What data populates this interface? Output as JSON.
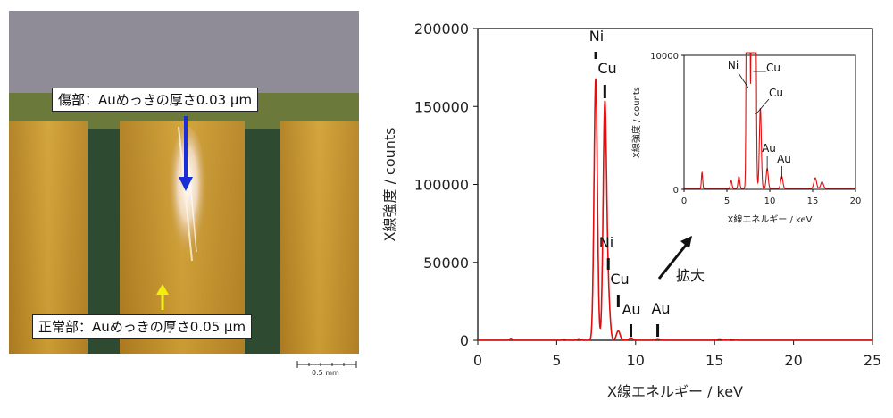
{
  "photo": {
    "damaged_label": "傷部：Auめっきの厚さ0.03 µm",
    "normal_label": "正常部：Auめっきの厚さ0.05 µm",
    "scale_label": "0.5 mm"
  },
  "chart_data": [
    {
      "type": "line",
      "xlabel": "X線エネルギー / keV",
      "ylabel": "X線強度 / counts",
      "xlim": [
        0,
        25
      ],
      "ylim": [
        0,
        200000
      ],
      "xticks": [
        "0",
        "5",
        "10",
        "15",
        "20",
        "25"
      ],
      "yticks": [
        "0",
        "50000",
        "100000",
        "150000",
        "200000"
      ],
      "grid": false,
      "color": "#e01010",
      "peaks": [
        {
          "x": 2.1,
          "y": 1200
        },
        {
          "x": 5.5,
          "y": 600
        },
        {
          "x": 6.4,
          "y": 900
        },
        {
          "x": 7.47,
          "y": 168000
        },
        {
          "x": 8.05,
          "y": 150000
        },
        {
          "x": 8.27,
          "y": 26000
        },
        {
          "x": 8.9,
          "y": 6000
        },
        {
          "x": 9.7,
          "y": 1500
        },
        {
          "x": 11.4,
          "y": 900
        },
        {
          "x": 15.3,
          "y": 800
        },
        {
          "x": 16.1,
          "y": 500
        }
      ],
      "annotations": [
        "Ni",
        "Cu",
        "Ni",
        "Cu",
        "Au",
        "Au"
      ],
      "arrow_label": "拡大"
    },
    {
      "type": "line",
      "xlabel": "X線エネルギー / keV",
      "ylabel": "X線強度 / counts",
      "xlim": [
        0,
        20
      ],
      "ylim": [
        0,
        10000
      ],
      "xticks": [
        "0",
        "5",
        "10",
        "15",
        "20"
      ],
      "yticks": [
        "0",
        "10000"
      ],
      "color": "#e01010",
      "peaks": [
        {
          "x": 2.1,
          "y": 1200
        },
        {
          "x": 5.5,
          "y": 600
        },
        {
          "x": 6.4,
          "y": 900
        },
        {
          "x": 7.47,
          "y": 168000
        },
        {
          "x": 8.05,
          "y": 150000
        },
        {
          "x": 8.27,
          "y": 26000
        },
        {
          "x": 8.9,
          "y": 6000
        },
        {
          "x": 9.7,
          "y": 1500
        },
        {
          "x": 11.4,
          "y": 900
        },
        {
          "x": 15.3,
          "y": 800
        },
        {
          "x": 16.1,
          "y": 500
        }
      ],
      "annotations": [
        "Ni",
        "Cu",
        "Cu",
        "Au",
        "Au"
      ]
    }
  ]
}
